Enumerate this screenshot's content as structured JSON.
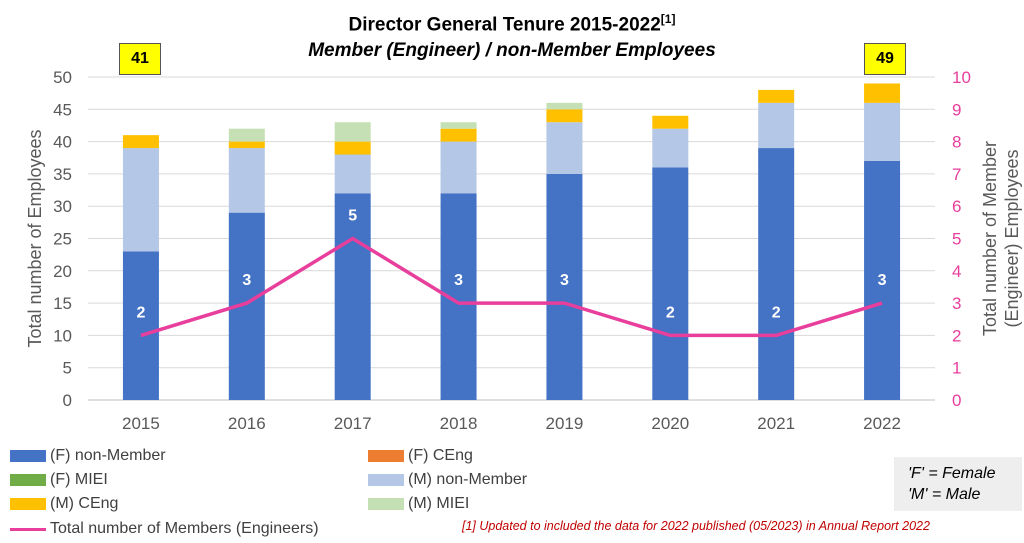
{
  "chart_data": {
    "type": "bar",
    "title": "Director General Tenure 2015-2022",
    "title_footnote": "[1]",
    "subtitle": "Member (Engineer) / non-Member Employees",
    "ylabel": "Total number of Employees",
    "y2label_line1": "Total number of Member",
    "y2label_line2": "(Engineer) Employees",
    "ylim": [
      0,
      50
    ],
    "y_ticks": [
      0,
      5,
      10,
      15,
      20,
      25,
      30,
      35,
      40,
      45,
      50
    ],
    "y2lim": [
      0,
      10
    ],
    "y2_ticks": [
      0,
      1,
      2,
      3,
      4,
      5,
      6,
      7,
      8,
      9,
      10
    ],
    "grid": true,
    "categories": [
      "2015",
      "2016",
      "2017",
      "2018",
      "2019",
      "2020",
      "2021",
      "2022"
    ],
    "series": [
      {
        "name": "(F) non-Member",
        "color": "#4472c4",
        "values": [
          23,
          29,
          32,
          32,
          35,
          36,
          39,
          37
        ]
      },
      {
        "name": "(F) CEng",
        "color": "#ed7d31",
        "values": [
          0,
          0,
          0,
          0,
          0,
          0,
          0,
          0
        ]
      },
      {
        "name": "(F) MIEI",
        "color": "#70ad47",
        "values": [
          0,
          0,
          0,
          0,
          0,
          0,
          0,
          0
        ]
      },
      {
        "name": "(M) non-Member",
        "color": "#b4c7e7",
        "values": [
          16,
          10,
          6,
          8,
          8,
          6,
          7,
          9
        ]
      },
      {
        "name": "(M) CEng",
        "color": "#ffc000",
        "values": [
          2,
          1,
          2,
          2,
          2,
          2,
          2,
          3
        ]
      },
      {
        "name": "(M) MIEI",
        "color": "#c5e0b4",
        "values": [
          0,
          2,
          3,
          1,
          1,
          0,
          0,
          0
        ]
      }
    ],
    "line": {
      "name": "Total number of Members (Engineers)",
      "color": "#e83e9c",
      "axis": "right",
      "values": [
        2,
        3,
        5,
        3,
        3,
        2,
        2,
        3
      ]
    },
    "callouts": [
      {
        "category": "2015",
        "text": "41"
      },
      {
        "category": "2022",
        "text": "49"
      }
    ],
    "legend_placement": "bottom"
  },
  "key": {
    "line1": "'F' = Female",
    "line2": "'M' = Male"
  },
  "footnote": "[1] Updated to included the data for 2022 published (05/2023) in Annual Report 2022"
}
